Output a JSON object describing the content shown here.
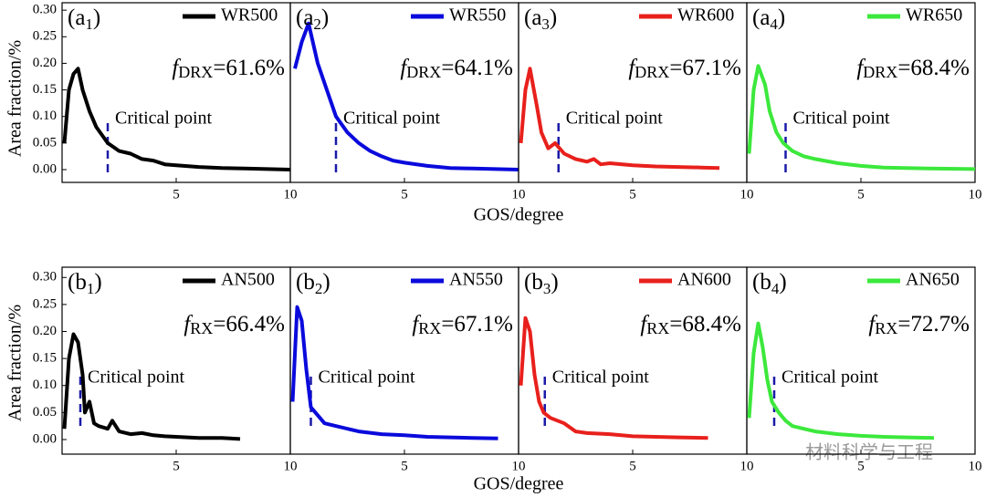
{
  "figure": {
    "rows": [
      {
        "ylabel": "Area fraction/%",
        "xlabel": "GOS/degree"
      },
      {
        "ylabel": "Area fraction/%",
        "xlabel": "GOS/degree"
      }
    ],
    "watermark": "材料科学与工程"
  },
  "chart_data": [
    {
      "type": "line",
      "label": [
        "(a",
        "1",
        ")"
      ],
      "fraction_label": [
        "f",
        "DRX",
        "=61.6%"
      ],
      "annotation": "Critical point",
      "critical_x": 2.0,
      "legend": "upper right",
      "xlim": [
        0,
        10
      ],
      "xticks": [
        5,
        10
      ],
      "ylim": [
        -0.024,
        0.314
      ],
      "yticks": [
        {
          "value": 0,
          "label": "0.00"
        },
        {
          "value": 0.05,
          "label": "0.05"
        },
        {
          "value": 0.1,
          "label": "0.10"
        },
        {
          "value": 0.15,
          "label": "0.15"
        },
        {
          "value": 0.2,
          "label": "0.20"
        },
        {
          "value": 0.25,
          "label": "0.25"
        },
        {
          "value": 0.3,
          "label": "0.30"
        }
      ],
      "x": [
        0.1,
        0.3,
        0.5,
        0.7,
        0.9,
        1.2,
        1.5,
        2,
        2.5,
        3,
        3.5,
        4,
        4.5,
        5,
        6,
        7,
        8,
        9,
        10
      ],
      "series": [
        {
          "name": "WR500",
          "color": "#000000",
          "values": [
            0.05,
            0.15,
            0.18,
            0.19,
            0.15,
            0.11,
            0.08,
            0.05,
            0.035,
            0.03,
            0.02,
            0.017,
            0.01,
            0.008,
            0.005,
            0.003,
            0.002,
            0.001,
            0
          ]
        }
      ]
    },
    {
      "type": "line",
      "label": [
        "(a",
        "2",
        ")"
      ],
      "fraction_label": [
        "f",
        "DRX",
        "=64.1%"
      ],
      "annotation": "Critical point",
      "critical_x": 2.0,
      "legend": "upper right",
      "xlim": [
        0,
        10
      ],
      "xticks": [
        5,
        10
      ],
      "ylim": [
        -0.024,
        0.314
      ],
      "x": [
        0.2,
        0.5,
        0.8,
        1.2,
        1.6,
        2,
        2.5,
        3,
        3.5,
        4,
        4.5,
        5,
        6,
        7,
        8,
        10
      ],
      "series": [
        {
          "name": "WR550",
          "color": "#0a0adc",
          "values": [
            0.19,
            0.24,
            0.275,
            0.2,
            0.15,
            0.1,
            0.07,
            0.05,
            0.035,
            0.025,
            0.017,
            0.013,
            0.007,
            0.003,
            0.002,
            0
          ]
        }
      ]
    },
    {
      "type": "line",
      "label": [
        "(a",
        "3",
        ")"
      ],
      "fraction_label": [
        "f",
        "DRX",
        "=67.1%"
      ],
      "annotation": "Critical point",
      "critical_x": 1.75,
      "legend": "upper right",
      "xlim": [
        0,
        10
      ],
      "xticks": [
        5,
        10
      ],
      "ylim": [
        -0.024,
        0.314
      ],
      "x": [
        0.1,
        0.3,
        0.5,
        0.8,
        1.0,
        1.3,
        1.6,
        2,
        2.5,
        3,
        3.3,
        3.6,
        4,
        5,
        6,
        7,
        8,
        8.8
      ],
      "series": [
        {
          "name": "WR600",
          "color": "#e8201c",
          "values": [
            0.05,
            0.15,
            0.19,
            0.12,
            0.07,
            0.04,
            0.05,
            0.03,
            0.02,
            0.015,
            0.02,
            0.01,
            0.012,
            0.008,
            0.006,
            0.005,
            0.004,
            0.003
          ]
        }
      ]
    },
    {
      "type": "line",
      "label": [
        "(a",
        "4",
        ")"
      ],
      "fraction_label": [
        "f",
        "DRX",
        "=68.4%"
      ],
      "annotation": "Critical point",
      "critical_x": 1.7,
      "legend": "upper right",
      "xlim": [
        0,
        10
      ],
      "xticks": [
        5,
        10
      ],
      "ylim": [
        -0.024,
        0.314
      ],
      "x": [
        0.1,
        0.3,
        0.5,
        0.8,
        1.0,
        1.3,
        1.6,
        2,
        2.5,
        3,
        4,
        5,
        6,
        8,
        10
      ],
      "series": [
        {
          "name": "WR650",
          "color": "#3ce83c",
          "values": [
            0.03,
            0.15,
            0.195,
            0.16,
            0.11,
            0.07,
            0.05,
            0.035,
            0.025,
            0.02,
            0.012,
            0.007,
            0.004,
            0.002,
            0.001
          ]
        }
      ]
    },
    {
      "type": "line",
      "label": [
        "(b",
        "1",
        ")"
      ],
      "fraction_label": [
        "f",
        "RX",
        "=66.4%"
      ],
      "annotation": "Critical point",
      "critical_x": 0.8,
      "legend": "upper right",
      "xlim": [
        0,
        10
      ],
      "xticks": [
        5,
        10
      ],
      "ylim": [
        -0.027,
        0.319
      ],
      "yticks": [
        {
          "value": 0,
          "label": "0.00"
        },
        {
          "value": 0.05,
          "label": "0.05"
        },
        {
          "value": 0.1,
          "label": "0.10"
        },
        {
          "value": 0.15,
          "label": "0.15"
        },
        {
          "value": 0.2,
          "label": "0.20"
        },
        {
          "value": 0.25,
          "label": "0.25"
        },
        {
          "value": 0.3,
          "label": "0.30"
        }
      ],
      "x": [
        0.1,
        0.3,
        0.5,
        0.7,
        0.9,
        1.0,
        1.2,
        1.4,
        1.6,
        2,
        2.2,
        2.5,
        3,
        3.5,
        4,
        4.5,
        5,
        6,
        7,
        7.8
      ],
      "series": [
        {
          "name": "AN500",
          "color": "#000000",
          "values": [
            0.02,
            0.15,
            0.195,
            0.18,
            0.12,
            0.05,
            0.07,
            0.03,
            0.025,
            0.02,
            0.035,
            0.015,
            0.01,
            0.012,
            0.008,
            0.006,
            0.005,
            0.003,
            0.003,
            0.001
          ]
        }
      ]
    },
    {
      "type": "line",
      "label": [
        "(b",
        "2",
        ")"
      ],
      "fraction_label": [
        "f",
        "RX",
        "=67.1%"
      ],
      "annotation": "Critical point",
      "critical_x": 0.9,
      "legend": "upper right",
      "xlim": [
        0,
        10
      ],
      "xticks": [
        5,
        10
      ],
      "ylim": [
        -0.027,
        0.319
      ],
      "x": [
        0.1,
        0.3,
        0.5,
        0.7,
        0.9,
        1.1,
        1.5,
        2,
        3,
        4,
        5,
        6,
        7,
        8,
        9.1
      ],
      "series": [
        {
          "name": "AN550",
          "color": "#0a0adc",
          "values": [
            0.07,
            0.245,
            0.22,
            0.13,
            0.06,
            0.05,
            0.03,
            0.025,
            0.015,
            0.01,
            0.008,
            0.005,
            0.004,
            0.003,
            0.002
          ]
        }
      ]
    },
    {
      "type": "line",
      "label": [
        "(b",
        "3",
        ")"
      ],
      "fraction_label": [
        "f",
        "RX",
        "=68.4%"
      ],
      "annotation": "Critical point",
      "critical_x": 1.15,
      "legend": "upper right",
      "xlim": [
        0,
        10
      ],
      "xticks": [
        5,
        10
      ],
      "ylim": [
        -0.027,
        0.319
      ],
      "x": [
        0.1,
        0.3,
        0.5,
        0.7,
        0.9,
        1.1,
        1.4,
        2,
        2.5,
        3,
        4,
        5,
        6,
        7,
        8.3
      ],
      "series": [
        {
          "name": "AN600",
          "color": "#e8201c",
          "values": [
            0.1,
            0.225,
            0.2,
            0.12,
            0.07,
            0.05,
            0.04,
            0.03,
            0.015,
            0.012,
            0.01,
            0.006,
            0.005,
            0.004,
            0.003
          ]
        }
      ]
    },
    {
      "type": "line",
      "label": [
        "(b",
        "4",
        ")"
      ],
      "fraction_label": [
        "f",
        "RX",
        "=72.7%"
      ],
      "annotation": "Critical point",
      "critical_x": 1.2,
      "legend": "upper right",
      "xlim": [
        0,
        10
      ],
      "xticks": [
        5,
        10
      ],
      "ylim": [
        -0.027,
        0.319
      ],
      "x": [
        0.1,
        0.3,
        0.5,
        0.7,
        0.9,
        1.1,
        1.4,
        1.7,
        2,
        2.5,
        3,
        4,
        5,
        6,
        7,
        8.2
      ],
      "series": [
        {
          "name": "AN650",
          "color": "#3ce83c",
          "values": [
            0.04,
            0.16,
            0.215,
            0.17,
            0.11,
            0.07,
            0.05,
            0.035,
            0.025,
            0.02,
            0.015,
            0.01,
            0.007,
            0.005,
            0.004,
            0.003
          ]
        }
      ]
    }
  ]
}
